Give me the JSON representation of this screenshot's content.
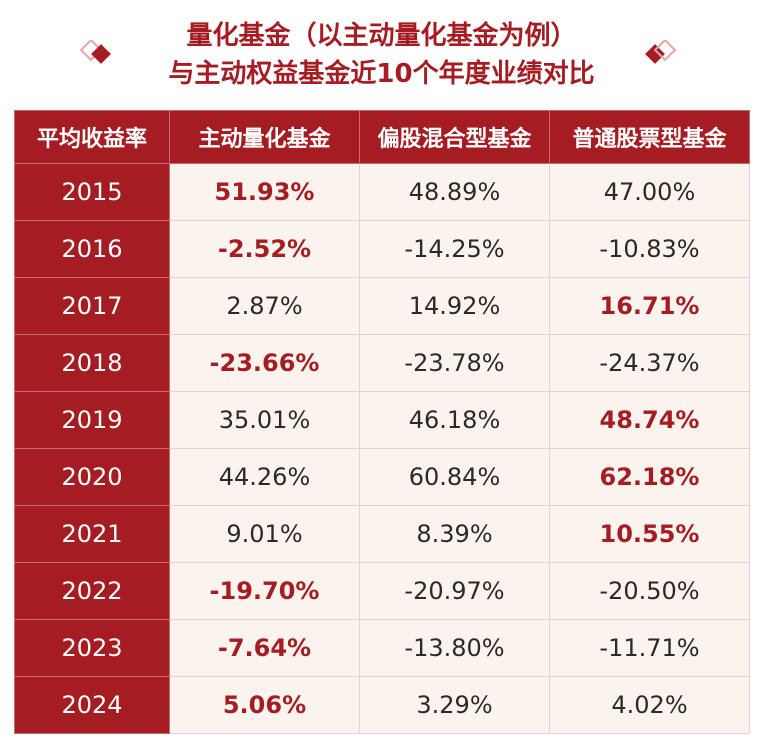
{
  "header": {
    "title_line1": "量化基金（以主动量化基金为例）",
    "title_line2": "与主动权益基金近10个年度业绩对比",
    "accent_color": "#a51d22",
    "decor_icon": "diamond-icon"
  },
  "chart_data": {
    "type": "table",
    "title": "量化基金（以主动量化基金为例）与主动权益基金近10个年度业绩对比",
    "columns": [
      "平均收益率",
      "主动量化基金",
      "偏股混合型基金",
      "普通股票型基金"
    ],
    "rows": [
      {
        "year": "2015",
        "cells": [
          "51.93%",
          "48.89%",
          "47.00%"
        ],
        "highlight": [
          true,
          false,
          false
        ]
      },
      {
        "year": "2016",
        "cells": [
          "-2.52%",
          "-14.25%",
          "-10.83%"
        ],
        "highlight": [
          true,
          false,
          false
        ]
      },
      {
        "year": "2017",
        "cells": [
          "2.87%",
          "14.92%",
          "16.71%"
        ],
        "highlight": [
          false,
          false,
          true
        ]
      },
      {
        "year": "2018",
        "cells": [
          "-23.66%",
          "-23.78%",
          "-24.37%"
        ],
        "highlight": [
          true,
          false,
          false
        ]
      },
      {
        "year": "2019",
        "cells": [
          "35.01%",
          "46.18%",
          "48.74%"
        ],
        "highlight": [
          false,
          false,
          true
        ]
      },
      {
        "year": "2020",
        "cells": [
          "44.26%",
          "60.84%",
          "62.18%"
        ],
        "highlight": [
          false,
          false,
          true
        ]
      },
      {
        "year": "2021",
        "cells": [
          "9.01%",
          "8.39%",
          "10.55%"
        ],
        "highlight": [
          false,
          false,
          true
        ]
      },
      {
        "year": "2022",
        "cells": [
          "-19.70%",
          "-20.97%",
          "-20.50%"
        ],
        "highlight": [
          true,
          false,
          false
        ]
      },
      {
        "year": "2023",
        "cells": [
          "-7.64%",
          "-13.80%",
          "-11.71%"
        ],
        "highlight": [
          true,
          false,
          false
        ]
      },
      {
        "year": "2024",
        "cells": [
          "5.06%",
          "3.29%",
          "4.02%"
        ],
        "highlight": [
          true,
          false,
          false
        ]
      }
    ]
  }
}
